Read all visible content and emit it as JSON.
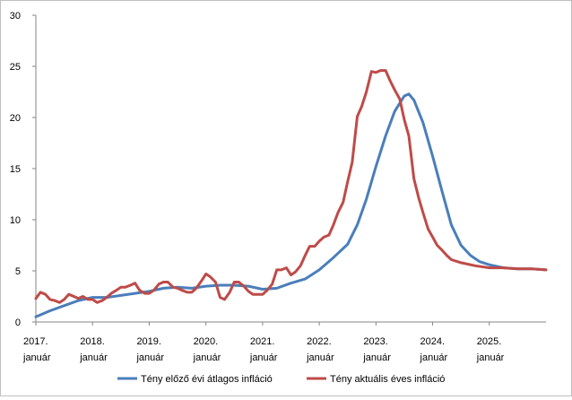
{
  "chart_data": {
    "type": "line",
    "title": "",
    "xlabel": "",
    "ylabel": "",
    "ylim": [
      0,
      30
    ],
    "xlim": [
      2017.0,
      2026.0
    ],
    "y_ticks": [
      "0",
      "5",
      "10",
      "15",
      "20",
      "25",
      "30"
    ],
    "x_ticks": [
      {
        "year": "2017.",
        "month": "január"
      },
      {
        "year": "2018.",
        "month": "január"
      },
      {
        "year": "2019.",
        "month": "január"
      },
      {
        "year": "2020.",
        "month": "január"
      },
      {
        "year": "2021.",
        "month": "január"
      },
      {
        "year": "2022.",
        "month": "január"
      },
      {
        "year": "2023.",
        "month": "január"
      },
      {
        "year": "2024.",
        "month": "január"
      },
      {
        "year": "2025.",
        "month": "január"
      }
    ],
    "grid": false,
    "legend_position": "bottom",
    "series": [
      {
        "name": "Tény előző évi átlagos infláció",
        "color": "#4a7ebb",
        "x": [
          2017.0,
          2017.25,
          2017.5,
          2017.75,
          2018.0,
          2018.25,
          2018.5,
          2018.75,
          2019.0,
          2019.25,
          2019.5,
          2019.75,
          2020.0,
          2020.25,
          2020.5,
          2020.75,
          2021.0,
          2021.25,
          2021.5,
          2021.75,
          2022.0,
          2022.25,
          2022.5,
          2022.67,
          2022.83,
          2023.0,
          2023.17,
          2023.33,
          2023.5,
          2023.58,
          2023.67,
          2023.83,
          2024.0,
          2024.17,
          2024.33,
          2024.5,
          2024.67,
          2024.83,
          2025.0,
          2025.25,
          2025.5,
          2025.75,
          2026.0
        ],
        "values": [
          0.5,
          1.1,
          1.6,
          2.1,
          2.4,
          2.4,
          2.6,
          2.8,
          3.0,
          3.3,
          3.4,
          3.3,
          3.5,
          3.6,
          3.6,
          3.5,
          3.2,
          3.3,
          3.8,
          4.2,
          5.1,
          6.3,
          7.6,
          9.5,
          12.0,
          15.2,
          18.2,
          20.6,
          22.1,
          22.3,
          21.7,
          19.5,
          16.2,
          12.7,
          9.5,
          7.5,
          6.5,
          5.9,
          5.6,
          5.3,
          5.2,
          5.2,
          5.1
        ]
      },
      {
        "name": "Tény aktuális éves infláció",
        "color": "#be4b48",
        "x": [
          2017.0,
          2017.08,
          2017.17,
          2017.25,
          2017.33,
          2017.42,
          2017.5,
          2017.58,
          2017.67,
          2017.75,
          2017.83,
          2017.92,
          2018.0,
          2018.08,
          2018.17,
          2018.25,
          2018.33,
          2018.42,
          2018.5,
          2018.58,
          2018.67,
          2018.75,
          2018.83,
          2018.92,
          2019.0,
          2019.08,
          2019.17,
          2019.25,
          2019.33,
          2019.42,
          2019.5,
          2019.58,
          2019.67,
          2019.75,
          2019.83,
          2019.92,
          2020.0,
          2020.08,
          2020.17,
          2020.25,
          2020.33,
          2020.42,
          2020.5,
          2020.58,
          2020.67,
          2020.75,
          2020.83,
          2020.92,
          2021.0,
          2021.08,
          2021.17,
          2021.25,
          2021.33,
          2021.42,
          2021.5,
          2021.58,
          2021.67,
          2021.75,
          2021.83,
          2021.92,
          2022.0,
          2022.08,
          2022.17,
          2022.25,
          2022.33,
          2022.42,
          2022.5,
          2022.58,
          2022.67,
          2022.75,
          2022.83,
          2022.92,
          2023.0,
          2023.08,
          2023.17,
          2023.25,
          2023.33,
          2023.42,
          2023.5,
          2023.58,
          2023.67,
          2023.75,
          2023.83,
          2023.92,
          2024.0,
          2024.08,
          2024.17,
          2024.25,
          2024.33,
          2024.5,
          2024.75,
          2025.0,
          2025.25,
          2025.5,
          2025.75,
          2026.0
        ],
        "values": [
          2.3,
          2.9,
          2.7,
          2.2,
          2.1,
          1.9,
          2.2,
          2.7,
          2.5,
          2.3,
          2.5,
          2.2,
          2.2,
          1.9,
          2.1,
          2.4,
          2.8,
          3.1,
          3.4,
          3.4,
          3.6,
          3.8,
          3.1,
          2.8,
          2.8,
          3.1,
          3.7,
          3.9,
          3.9,
          3.4,
          3.3,
          3.1,
          2.9,
          2.9,
          3.3,
          4.0,
          4.7,
          4.4,
          3.9,
          2.4,
          2.2,
          2.9,
          3.9,
          3.9,
          3.5,
          3.0,
          2.7,
          2.7,
          2.7,
          3.1,
          3.7,
          5.1,
          5.1,
          5.3,
          4.6,
          4.9,
          5.5,
          6.5,
          7.4,
          7.4,
          7.9,
          8.3,
          8.5,
          9.5,
          10.7,
          11.7,
          13.7,
          15.6,
          20.1,
          21.1,
          22.5,
          24.5,
          24.4,
          24.6,
          24.6,
          23.6,
          22.7,
          21.8,
          19.8,
          18.2,
          14.0,
          12.2,
          10.7,
          9.1,
          8.3,
          7.5,
          7.0,
          6.5,
          6.1,
          5.8,
          5.5,
          5.3,
          5.3,
          5.2,
          5.2,
          5.1
        ]
      }
    ]
  }
}
